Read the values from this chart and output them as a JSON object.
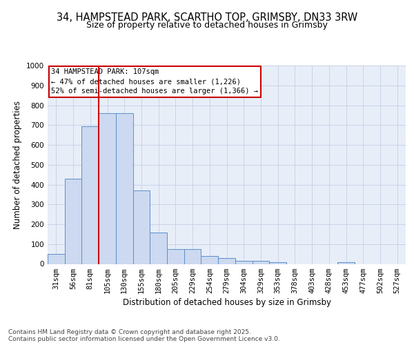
{
  "title_line1": "34, HAMPSTEAD PARK, SCARTHO TOP, GRIMSBY, DN33 3RW",
  "title_line2": "Size of property relative to detached houses in Grimsby",
  "xlabel": "Distribution of detached houses by size in Grimsby",
  "ylabel": "Number of detached properties",
  "categories": [
    "31sqm",
    "56sqm",
    "81sqm",
    "105sqm",
    "130sqm",
    "155sqm",
    "180sqm",
    "205sqm",
    "229sqm",
    "254sqm",
    "279sqm",
    "304sqm",
    "329sqm",
    "353sqm",
    "378sqm",
    "403sqm",
    "428sqm",
    "453sqm",
    "477sqm",
    "502sqm",
    "527sqm"
  ],
  "values": [
    50,
    430,
    695,
    760,
    760,
    370,
    160,
    75,
    75,
    40,
    30,
    15,
    15,
    10,
    0,
    0,
    0,
    8,
    0,
    0,
    0
  ],
  "bar_color": "#ccd9f0",
  "bar_edge_color": "#5b8fc9",
  "grid_color": "#c8d4e8",
  "bg_color": "#e8eef8",
  "vline_color": "#cc0000",
  "vline_x": 2.5,
  "annotation_line1": "34 HAMPSTEAD PARK: 107sqm",
  "annotation_line2": "← 47% of detached houses are smaller (1,226)",
  "annotation_line3": "52% of semi-detached houses are larger (1,366) →",
  "annotation_box_edgecolor": "#cc0000",
  "ylim_min": 0,
  "ylim_max": 1000,
  "yticks": [
    0,
    100,
    200,
    300,
    400,
    500,
    600,
    700,
    800,
    900,
    1000
  ],
  "footnote_line1": "Contains HM Land Registry data © Crown copyright and database right 2025.",
  "footnote_line2": "Contains public sector information licensed under the Open Government Licence v3.0.",
  "title_fontsize": 10.5,
  "subtitle_fontsize": 9,
  "ylabel_fontsize": 8.5,
  "xlabel_fontsize": 8.5,
  "tick_fontsize": 7.5,
  "annot_fontsize": 7.5,
  "footnote_fontsize": 6.5
}
